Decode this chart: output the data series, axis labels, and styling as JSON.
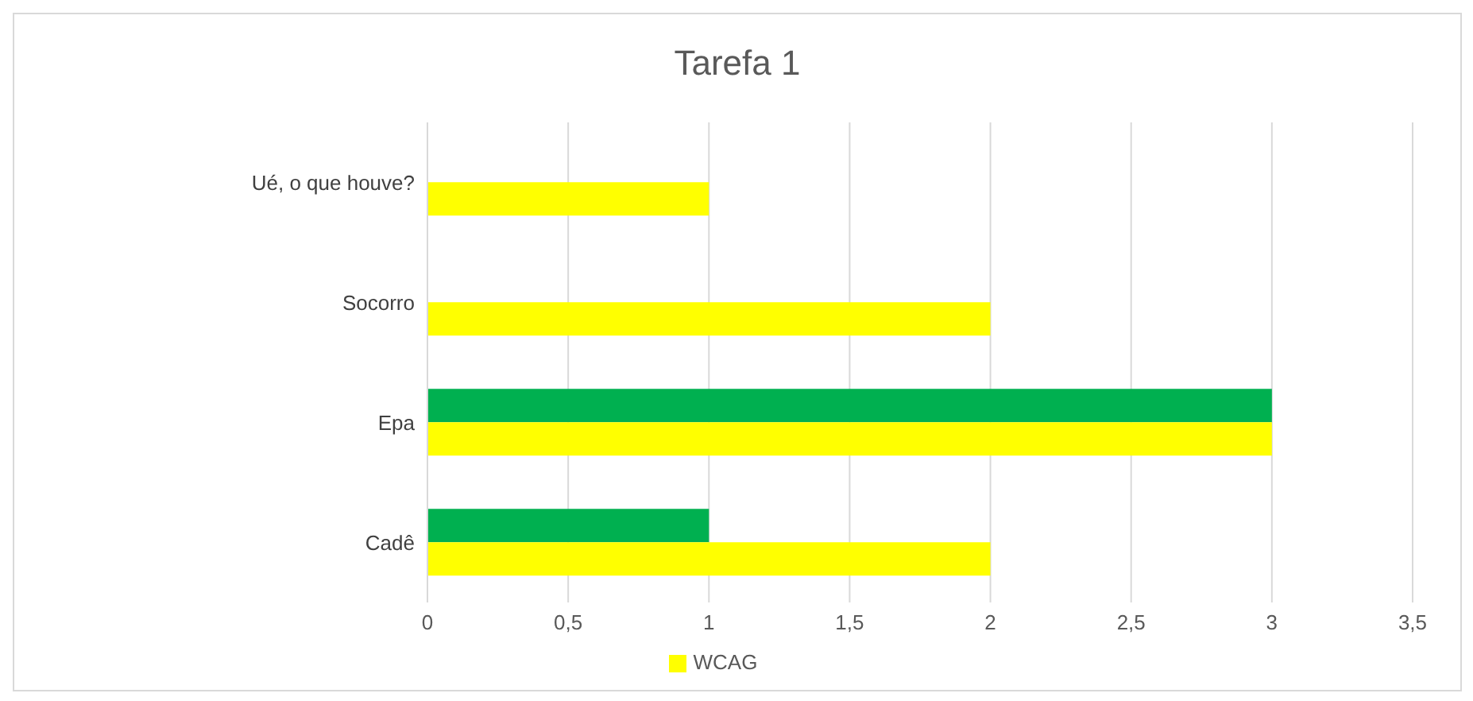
{
  "chart_data": {
    "type": "bar",
    "orientation": "horizontal",
    "title": "Tarefa 1",
    "categories": [
      "Ué, o que houve?",
      "Socorro",
      "Epa",
      "Cadê"
    ],
    "series": [
      {
        "color": "#00b050",
        "values": [
          0,
          0,
          3,
          1
        ]
      },
      {
        "name": "WCAG",
        "color": "#ffff00",
        "values": [
          1,
          2,
          3,
          2
        ]
      }
    ],
    "xlim": [
      0,
      3.5
    ],
    "xticks": [
      0,
      {
        "value": 0.5,
        "label": "0,5"
      },
      1,
      {
        "value": 1.5,
        "label": "1,5"
      },
      2,
      {
        "value": 2.5,
        "label": "2,5"
      },
      3,
      {
        "value": 3.5,
        "label": "3,5"
      }
    ],
    "grid": "x",
    "legend": "bottom"
  }
}
